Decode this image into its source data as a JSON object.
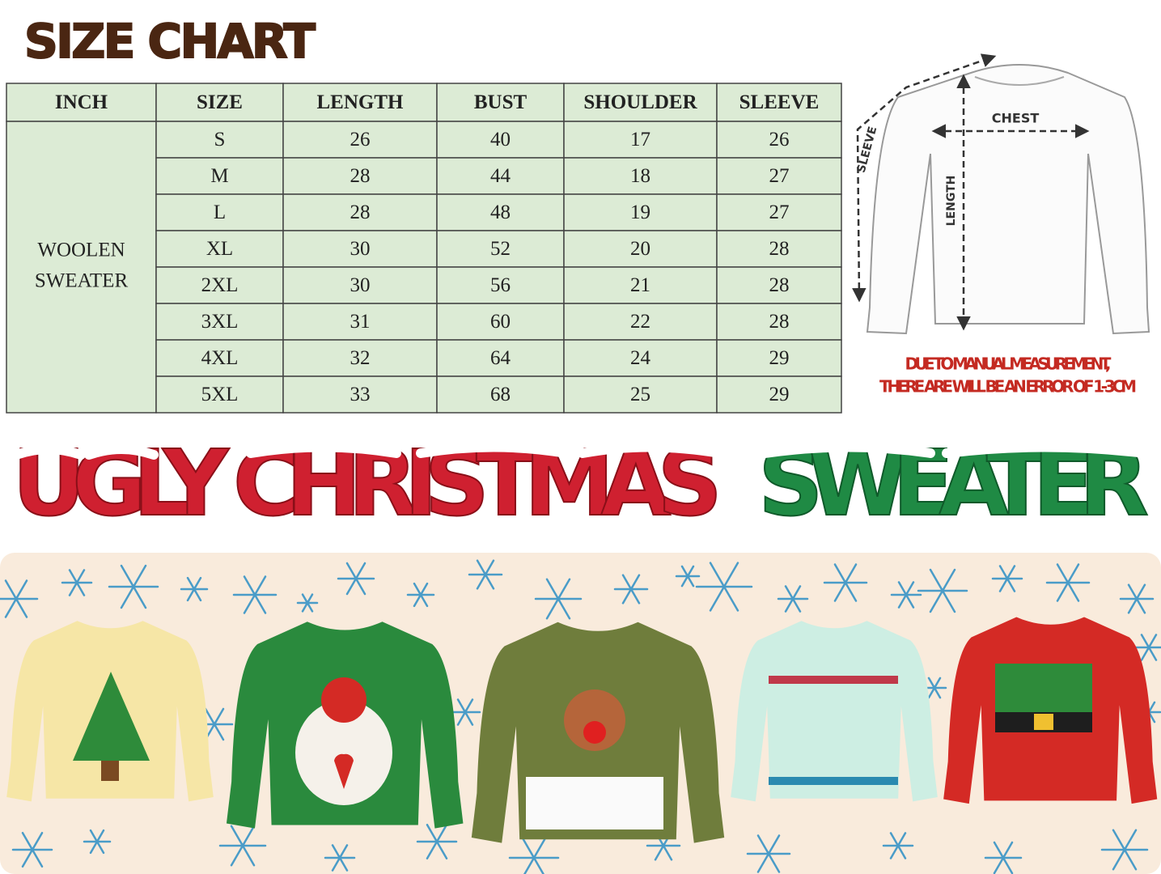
{
  "header": {
    "title": "SIZE CHART"
  },
  "table": {
    "header": [
      "INCH",
      "SIZE",
      "LENGTH",
      "BUST",
      "SHOULDER",
      "SLEEVE"
    ],
    "group": [
      "WOOLEN",
      "SWEATER"
    ],
    "rows": [
      [
        "S",
        26,
        40,
        17,
        26
      ],
      [
        "M",
        28,
        44,
        18,
        27
      ],
      [
        "L",
        28,
        48,
        19,
        27
      ],
      [
        "XL",
        30,
        52,
        20,
        28
      ],
      [
        "2XL",
        30,
        56,
        21,
        28
      ],
      [
        "3XL",
        31,
        60,
        22,
        28
      ],
      [
        "4XL",
        32,
        64,
        24,
        29
      ],
      [
        "5XL",
        33,
        68,
        25,
        29
      ]
    ]
  },
  "diagram": {
    "chest": "CHEST",
    "sleeve": "SLEEVE",
    "length": "LENGTH",
    "note": [
      "DUE TO MANUAL MEASUREMENT,",
      "THERE ARE WILL BE AN ERROR OF 1-3CM"
    ]
  },
  "banner": {
    "red": "UGLY CHRISTMAS",
    "green": "SWEATER"
  }
}
